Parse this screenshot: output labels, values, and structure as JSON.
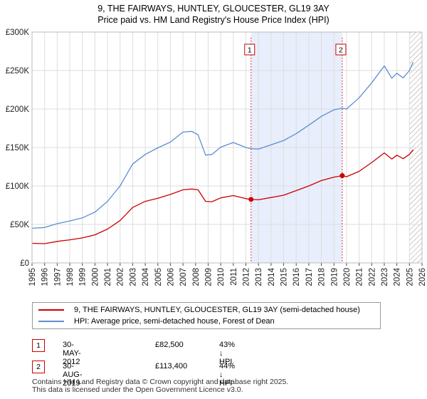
{
  "chart_data": {
    "type": "line",
    "title": "9, THE FAIRWAYS, HUNTLEY, GLOUCESTER, GL19 3AY",
    "subtitle": "Price paid vs. HM Land Registry's House Price Index (HPI)",
    "xlabel": "",
    "ylabel": "",
    "xlim": [
      1995,
      2026
    ],
    "ylim": [
      0,
      300000
    ],
    "y_ticks": [
      {
        "value": 0,
        "label": "£0"
      },
      {
        "value": 50000,
        "label": "£50K"
      },
      {
        "value": 100000,
        "label": "£100K"
      },
      {
        "value": 150000,
        "label": "£150K"
      },
      {
        "value": 200000,
        "label": "£200K"
      },
      {
        "value": 250000,
        "label": "£250K"
      },
      {
        "value": 300000,
        "label": "£300K"
      }
    ],
    "x_ticks": [
      "1995",
      "1996",
      "1997",
      "1998",
      "1999",
      "2000",
      "2001",
      "2002",
      "2003",
      "2004",
      "2005",
      "2006",
      "2007",
      "2008",
      "2009",
      "2010",
      "2011",
      "2012",
      "2013",
      "2014",
      "2015",
      "2016",
      "2017",
      "2018",
      "2019",
      "2020",
      "2021",
      "2022",
      "2023",
      "2024",
      "2025",
      "2026"
    ],
    "grid": true,
    "shaded_region": {
      "from": 2012.41,
      "to": 2019.66,
      "color": "#e8eefb"
    },
    "hatched_region": {
      "from": 2025.0,
      "to": 2026.0
    },
    "series": [
      {
        "name": "9, THE FAIRWAYS, HUNTLEY, GLOUCESTER, GL19 3AY (semi-detached house)",
        "color": "#cc0000",
        "x": [
          1995,
          1996,
          1997,
          1998,
          1999,
          2000,
          2001,
          2002,
          2003,
          2004,
          2005,
          2006,
          2007,
          2007.7,
          2008.2,
          2008.8,
          2009.3,
          2010,
          2011,
          2012,
          2012.41,
          2013,
          2014,
          2015,
          2016,
          2017,
          2018,
          2019,
          2019.66,
          2020,
          2021,
          2022,
          2023,
          2023.6,
          2024,
          2024.5,
          2025,
          2025.3
        ],
        "values": [
          25500,
          25000,
          28000,
          30000,
          32500,
          36500,
          44000,
          55000,
          72000,
          80000,
          84000,
          89000,
          95000,
          96000,
          95000,
          80000,
          79500,
          84500,
          87500,
          83500,
          82500,
          82000,
          85000,
          88000,
          94000,
          100000,
          107000,
          111500,
          113400,
          112000,
          119000,
          130500,
          143000,
          135000,
          140000,
          135500,
          141000,
          147000
        ]
      },
      {
        "name": "HPI: Average price, semi-detached house, Forest of Dean",
        "color": "#5b8fd0",
        "x": [
          1995,
          1996,
          1997,
          1998,
          1999,
          2000,
          2001,
          2002,
          2003,
          2004,
          2005,
          2006,
          2007,
          2007.7,
          2008.2,
          2008.8,
          2009.3,
          2010,
          2011,
          2012,
          2012.41,
          2013,
          2014,
          2015,
          2016,
          2017,
          2018,
          2019,
          2019.66,
          2020,
          2021,
          2022,
          2023,
          2023.6,
          2024,
          2024.5,
          2025,
          2025.3
        ],
        "values": [
          45000,
          46000,
          51000,
          54500,
          58500,
          66000,
          80000,
          100000,
          128500,
          141000,
          149500,
          157000,
          170000,
          171000,
          166500,
          140000,
          141000,
          150500,
          156500,
          150000,
          148500,
          148000,
          153500,
          159000,
          168000,
          179000,
          190500,
          199000,
          201000,
          200000,
          214500,
          234000,
          256000,
          240000,
          246500,
          240500,
          250000,
          261000
        ]
      }
    ],
    "annotations": [
      {
        "label": "1",
        "x": 2012.41,
        "y": 82500
      },
      {
        "label": "2",
        "x": 2019.66,
        "y": 113400
      }
    ]
  },
  "legend": {
    "property_label": "9, THE FAIRWAYS, HUNTLEY, GLOUCESTER, GL19 3AY (semi-detached house)",
    "hpi_label": "HPI: Average price, semi-detached house, Forest of Dean"
  },
  "transactions": [
    {
      "num": "1",
      "date": "30-MAY-2012",
      "price": "£82,500",
      "hpi": "43% ↓ HPI"
    },
    {
      "num": "2",
      "date": "30-AUG-2019",
      "price": "£113,400",
      "hpi": "44% ↓ HPI"
    }
  ],
  "footer": {
    "line1": "Contains HM Land Registry data © Crown copyright and database right 2025.",
    "line2": "This data is licensed under the Open Government Licence v3.0."
  },
  "colors": {
    "property": "#cc0000",
    "hpi": "#5b8fd0",
    "shade": "#e8eefb"
  }
}
